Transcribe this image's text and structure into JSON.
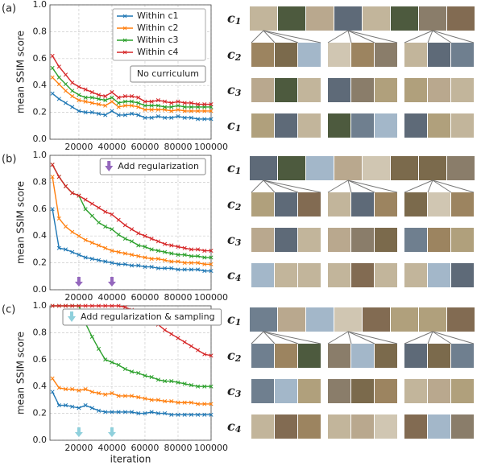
{
  "chart_data": [
    {
      "type": "line",
      "panel_label": "(a)",
      "ylabel": "mean SSIM score",
      "x": [
        4000,
        8000,
        12000,
        16000,
        20000,
        24000,
        28000,
        32000,
        36000,
        40000,
        44000,
        48000,
        52000,
        56000,
        60000,
        64000,
        68000,
        72000,
        76000,
        80000,
        84000,
        88000,
        92000,
        96000,
        100000
      ],
      "series": [
        {
          "name": "Within c1",
          "color": "#1f77b4",
          "values": [
            0.34,
            0.3,
            0.27,
            0.24,
            0.21,
            0.2,
            0.2,
            0.19,
            0.18,
            0.21,
            0.18,
            0.18,
            0.19,
            0.18,
            0.16,
            0.16,
            0.17,
            0.16,
            0.16,
            0.17,
            0.16,
            0.16,
            0.15,
            0.15,
            0.15
          ]
        },
        {
          "name": "Within c2",
          "color": "#ff7f0e",
          "values": [
            0.46,
            0.41,
            0.36,
            0.32,
            0.29,
            0.28,
            0.27,
            0.26,
            0.25,
            0.28,
            0.24,
            0.25,
            0.25,
            0.24,
            0.22,
            0.22,
            0.22,
            0.22,
            0.21,
            0.22,
            0.21,
            0.21,
            0.21,
            0.21,
            0.21
          ]
        },
        {
          "name": "Within c3",
          "color": "#2ca02c",
          "values": [
            0.53,
            0.46,
            0.41,
            0.36,
            0.33,
            0.31,
            0.31,
            0.3,
            0.29,
            0.31,
            0.27,
            0.28,
            0.28,
            0.27,
            0.25,
            0.25,
            0.25,
            0.24,
            0.24,
            0.25,
            0.24,
            0.24,
            0.24,
            0.24,
            0.24
          ]
        },
        {
          "name": "Within c4",
          "color": "#d62728",
          "values": [
            0.62,
            0.54,
            0.48,
            0.42,
            0.39,
            0.37,
            0.35,
            0.33,
            0.32,
            0.35,
            0.31,
            0.32,
            0.32,
            0.31,
            0.28,
            0.28,
            0.29,
            0.28,
            0.27,
            0.28,
            0.27,
            0.27,
            0.26,
            0.26,
            0.26
          ]
        }
      ],
      "xlim": [
        2500,
        100000
      ],
      "ylim": [
        0,
        1
      ],
      "xticks": [
        20000,
        40000,
        60000,
        80000,
        100000
      ],
      "yticks": [
        {
          "value": 0,
          "label": "0.0"
        },
        0.2,
        0.4,
        0.6,
        0.8,
        {
          "value": 1,
          "label": "1.0"
        }
      ],
      "grid": true,
      "legend": "upper right",
      "annotation": "No curriculum"
    },
    {
      "type": "line",
      "panel_label": "(b)",
      "ylabel": "mean SSIM score",
      "x": [
        4000,
        8000,
        12000,
        16000,
        20000,
        24000,
        28000,
        32000,
        36000,
        40000,
        44000,
        48000,
        52000,
        56000,
        60000,
        64000,
        68000,
        72000,
        76000,
        80000,
        84000,
        88000,
        92000,
        96000,
        100000
      ],
      "series": [
        {
          "color": "#1f77b4",
          "values": [
            0.6,
            0.31,
            0.3,
            0.28,
            0.26,
            0.24,
            0.23,
            0.22,
            0.21,
            0.2,
            0.19,
            0.19,
            0.18,
            0.18,
            0.17,
            0.17,
            0.16,
            0.16,
            0.16,
            0.15,
            0.15,
            0.15,
            0.15,
            0.14,
            0.14
          ]
        },
        {
          "color": "#ff7f0e",
          "values": [
            0.84,
            0.53,
            0.47,
            0.43,
            0.4,
            0.37,
            0.35,
            0.33,
            0.31,
            0.29,
            0.28,
            0.27,
            0.26,
            0.25,
            0.24,
            0.23,
            0.23,
            0.22,
            0.21,
            0.21,
            0.2,
            0.2,
            0.2,
            0.19,
            0.19
          ]
        },
        {
          "color": "#2ca02c",
          "values": [
            0.93,
            0.84,
            0.77,
            0.72,
            0.7,
            0.6,
            0.55,
            0.5,
            0.47,
            0.45,
            0.41,
            0.38,
            0.36,
            0.33,
            0.32,
            0.3,
            0.29,
            0.28,
            0.27,
            0.26,
            0.26,
            0.25,
            0.25,
            0.24,
            0.24
          ]
        },
        {
          "color": "#d62728",
          "values": [
            0.93,
            0.84,
            0.77,
            0.72,
            0.7,
            0.67,
            0.64,
            0.61,
            0.58,
            0.56,
            0.52,
            0.48,
            0.45,
            0.42,
            0.4,
            0.38,
            0.36,
            0.34,
            0.33,
            0.32,
            0.31,
            0.3,
            0.3,
            0.29,
            0.29
          ]
        }
      ],
      "xlim": [
        2500,
        100000
      ],
      "ylim": [
        0,
        1
      ],
      "xticks": [
        20000,
        40000,
        60000,
        80000,
        100000
      ],
      "yticks": [
        {
          "value": 0,
          "label": "0.0"
        },
        0.2,
        0.4,
        0.6,
        0.8,
        {
          "value": 1,
          "label": "1.0"
        }
      ],
      "grid": true,
      "annotation": "Add regularization",
      "arrows_x": [
        20000,
        40000
      ],
      "arrow_color": "#9467bd"
    },
    {
      "type": "line",
      "panel_label": "(c)",
      "ylabel": "mean SSIM score",
      "xlabel": "iteration",
      "x": [
        4000,
        8000,
        12000,
        16000,
        20000,
        24000,
        28000,
        32000,
        36000,
        40000,
        44000,
        48000,
        52000,
        56000,
        60000,
        64000,
        68000,
        72000,
        76000,
        80000,
        84000,
        88000,
        92000,
        96000,
        100000
      ],
      "series": [
        {
          "color": "#1f77b4",
          "values": [
            0.36,
            0.26,
            0.26,
            0.25,
            0.24,
            0.26,
            0.24,
            0.22,
            0.21,
            0.21,
            0.21,
            0.21,
            0.21,
            0.2,
            0.2,
            0.21,
            0.2,
            0.2,
            0.19,
            0.19,
            0.19,
            0.19,
            0.19,
            0.19,
            0.19
          ]
        },
        {
          "color": "#ff7f0e",
          "values": [
            0.46,
            0.39,
            0.38,
            0.38,
            0.37,
            0.38,
            0.36,
            0.35,
            0.34,
            0.35,
            0.33,
            0.33,
            0.33,
            0.32,
            0.31,
            0.3,
            0.3,
            0.29,
            0.29,
            0.28,
            0.28,
            0.28,
            0.27,
            0.27,
            0.27
          ]
        },
        {
          "color": "#2ca02c",
          "values": [
            1.0,
            1.0,
            1.0,
            1.0,
            1.0,
            0.87,
            0.77,
            0.68,
            0.6,
            0.58,
            0.56,
            0.53,
            0.51,
            0.5,
            0.48,
            0.47,
            0.45,
            0.44,
            0.44,
            0.43,
            0.42,
            0.41,
            0.4,
            0.4,
            0.4
          ]
        },
        {
          "color": "#d62728",
          "values": [
            1.0,
            1.0,
            1.0,
            1.0,
            1.0,
            1.0,
            1.0,
            1.0,
            1.0,
            1.0,
            1.0,
            0.99,
            0.97,
            0.95,
            0.92,
            0.89,
            0.86,
            0.82,
            0.79,
            0.76,
            0.73,
            0.7,
            0.67,
            0.64,
            0.63
          ]
        }
      ],
      "xlim": [
        2500,
        100000
      ],
      "ylim": [
        0,
        1
      ],
      "xticks": [
        20000,
        40000,
        60000,
        80000,
        100000
      ],
      "yticks": [
        {
          "value": 0,
          "label": "0.0"
        },
        0.2,
        0.4,
        0.6,
        0.8,
        {
          "value": 1,
          "label": "1.0"
        }
      ],
      "grid": true,
      "annotation": "Add regularization & sampling",
      "arrows_x": [
        20000,
        40000
      ],
      "arrow_color": "#8fd0dc"
    }
  ],
  "image_grids": [
    {
      "rows": [
        [
          "c",
          "1"
        ],
        [
          "c",
          "2"
        ],
        [
          "c",
          "3"
        ],
        [
          "c",
          "1"
        ]
      ]
    },
    {
      "rows": [
        [
          "c",
          "1"
        ],
        [
          "c",
          "2"
        ],
        [
          "c",
          "3"
        ],
        [
          "c",
          "4"
        ]
      ]
    },
    {
      "rows": [
        [
          "c",
          "1"
        ],
        [
          "c",
          "2"
        ],
        [
          "c",
          "3"
        ],
        [
          "c",
          "4"
        ]
      ]
    }
  ]
}
